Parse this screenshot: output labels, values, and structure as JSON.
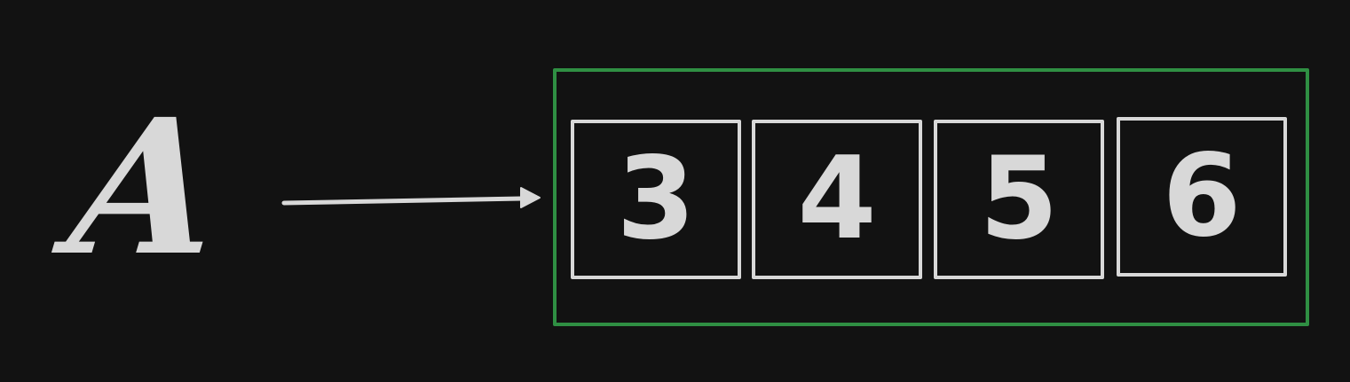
{
  "diagram": {
    "variable_label": "A",
    "cells": [
      {
        "value": "3"
      },
      {
        "value": "4"
      },
      {
        "value": "5"
      },
      {
        "value": "6"
      }
    ],
    "colors": {
      "background": "#121212",
      "stroke": "#d8d8d8",
      "group_border": "#2f8f43"
    }
  }
}
